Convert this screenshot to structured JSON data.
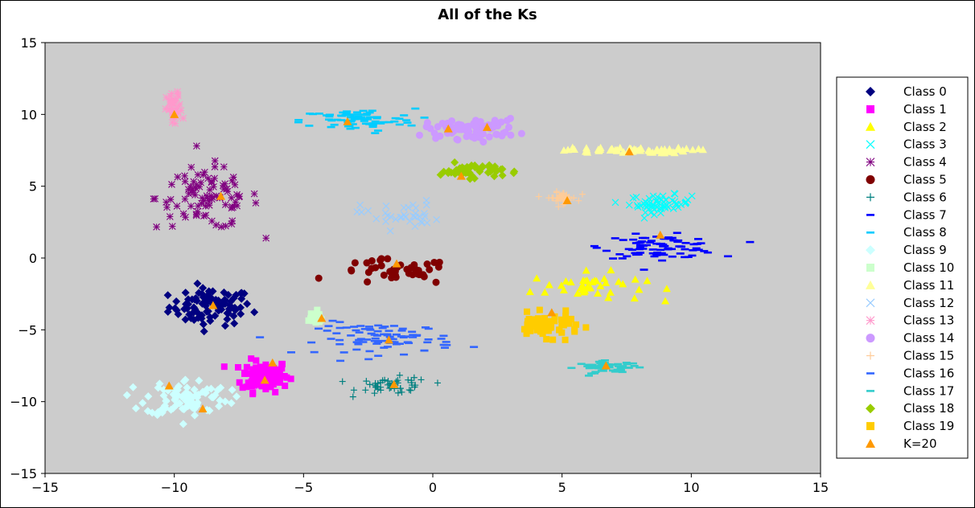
{
  "chart_data": {
    "type": "scatter",
    "title": "All of the Ks",
    "xlabel": "",
    "ylabel": "",
    "xlim": [
      -15,
      15
    ],
    "ylim": [
      -15,
      15
    ],
    "xticks": [
      -15,
      -10,
      -5,
      0,
      5,
      10,
      15
    ],
    "yticks": [
      -15,
      -10,
      -5,
      0,
      5,
      10,
      15
    ],
    "grid": false,
    "plot_background": "#cccccc",
    "legend_position": "right",
    "series": [
      {
        "name": "Class 0",
        "marker": "diamond",
        "color": "#000080",
        "center": [
          -8.6,
          -3.4
        ],
        "spread": [
          1.6,
          1.3
        ],
        "count": 90
      },
      {
        "name": "Class 1",
        "marker": "square",
        "color": "#ff00ff",
        "center": [
          -6.5,
          -8.2
        ],
        "spread": [
          0.9,
          1.1
        ],
        "count": 100
      },
      {
        "name": "Class 2",
        "marker": "triangle",
        "color": "#ffff00",
        "center": [
          6.0,
          -2.0
        ],
        "spread": [
          2.2,
          1.0
        ],
        "count": 40
      },
      {
        "name": "Class 3",
        "marker": "x",
        "color": "#00ffff",
        "center": [
          8.8,
          3.8
        ],
        "spread": [
          1.2,
          0.6
        ],
        "count": 60
      },
      {
        "name": "Class 4",
        "marker": "asterisk",
        "color": "#800080",
        "center": [
          -8.7,
          4.2
        ],
        "spread": [
          2.0,
          2.2
        ],
        "count": 90
      },
      {
        "name": "Class 5",
        "marker": "circle",
        "color": "#800000",
        "center": [
          -1.5,
          -1.0
        ],
        "spread": [
          2.2,
          0.9
        ],
        "count": 40
      },
      {
        "name": "Class 6",
        "marker": "plus",
        "color": "#008080",
        "center": [
          -1.5,
          -8.9
        ],
        "spread": [
          1.4,
          0.6
        ],
        "count": 50
      },
      {
        "name": "Class 7",
        "marker": "dash",
        "color": "#0000ff",
        "center": [
          8.8,
          0.8
        ],
        "spread": [
          2.2,
          0.8
        ],
        "count": 90
      },
      {
        "name": "Class 8",
        "marker": "dash",
        "color": "#00ccff",
        "center": [
          -2.9,
          9.6
        ],
        "spread": [
          2.2,
          0.8
        ],
        "count": 80
      },
      {
        "name": "Class 9",
        "marker": "diamond",
        "color": "#ccffff",
        "center": [
          -9.5,
          -9.7
        ],
        "spread": [
          1.6,
          1.3
        ],
        "count": 90
      },
      {
        "name": "Class 10",
        "marker": "square",
        "color": "#ccffcc",
        "center": [
          -4.6,
          -4.2
        ],
        "spread": [
          0.4,
          0.5
        ],
        "count": 25
      },
      {
        "name": "Class 11",
        "marker": "triangle",
        "color": "#ffff99",
        "center": [
          7.5,
          7.5
        ],
        "spread": [
          2.5,
          0.2
        ],
        "count": 60
      },
      {
        "name": "Class 12",
        "marker": "x",
        "color": "#99ccff",
        "center": [
          -1.3,
          3.0
        ],
        "spread": [
          1.5,
          1.0
        ],
        "count": 35
      },
      {
        "name": "Class 13",
        "marker": "asterisk",
        "color": "#ff99cc",
        "center": [
          -10.0,
          10.3
        ],
        "spread": [
          0.3,
          1.2
        ],
        "count": 40
      },
      {
        "name": "Class 14",
        "marker": "circle",
        "color": "#cc99ff",
        "center": [
          1.5,
          9.0
        ],
        "spread": [
          1.8,
          0.7
        ],
        "count": 80
      },
      {
        "name": "Class 15",
        "marker": "plus",
        "color": "#ffcc99",
        "center": [
          5.0,
          4.2
        ],
        "spread": [
          0.6,
          0.4
        ],
        "count": 40
      },
      {
        "name": "Class 16",
        "marker": "dash",
        "color": "#3366ff",
        "center": [
          -1.8,
          -5.6
        ],
        "spread": [
          2.6,
          1.1
        ],
        "count": 90
      },
      {
        "name": "Class 17",
        "marker": "dash",
        "color": "#33cccc",
        "center": [
          6.8,
          -7.6
        ],
        "spread": [
          1.2,
          0.4
        ],
        "count": 60
      },
      {
        "name": "Class 18",
        "marker": "diamond",
        "color": "#99cc00",
        "center": [
          1.5,
          6.1
        ],
        "spread": [
          1.2,
          0.5
        ],
        "count": 50
      },
      {
        "name": "Class 19",
        "marker": "square",
        "color": "#ffcc00",
        "center": [
          4.4,
          -4.7
        ],
        "spread": [
          1.3,
          0.8
        ],
        "count": 60
      },
      {
        "name": "K=20",
        "marker": "triangle",
        "color": "#ff9900",
        "points": [
          [
            -10.0,
            10.0
          ],
          [
            -3.3,
            9.5
          ],
          [
            0.6,
            9.0
          ],
          [
            2.1,
            9.1
          ],
          [
            7.6,
            7.4
          ],
          [
            -8.2,
            4.3
          ],
          [
            1.1,
            5.7
          ],
          [
            5.2,
            4.0
          ],
          [
            8.8,
            1.6
          ],
          [
            -1.4,
            -0.4
          ],
          [
            -8.5,
            -3.3
          ],
          [
            -4.3,
            -4.2
          ],
          [
            4.6,
            -3.8
          ],
          [
            -1.7,
            -5.7
          ],
          [
            -6.2,
            -7.3
          ],
          [
            -6.5,
            -8.5
          ],
          [
            6.7,
            -7.5
          ],
          [
            -1.5,
            -8.8
          ],
          [
            -10.2,
            -8.9
          ],
          [
            -8.9,
            -10.5
          ]
        ]
      }
    ]
  }
}
